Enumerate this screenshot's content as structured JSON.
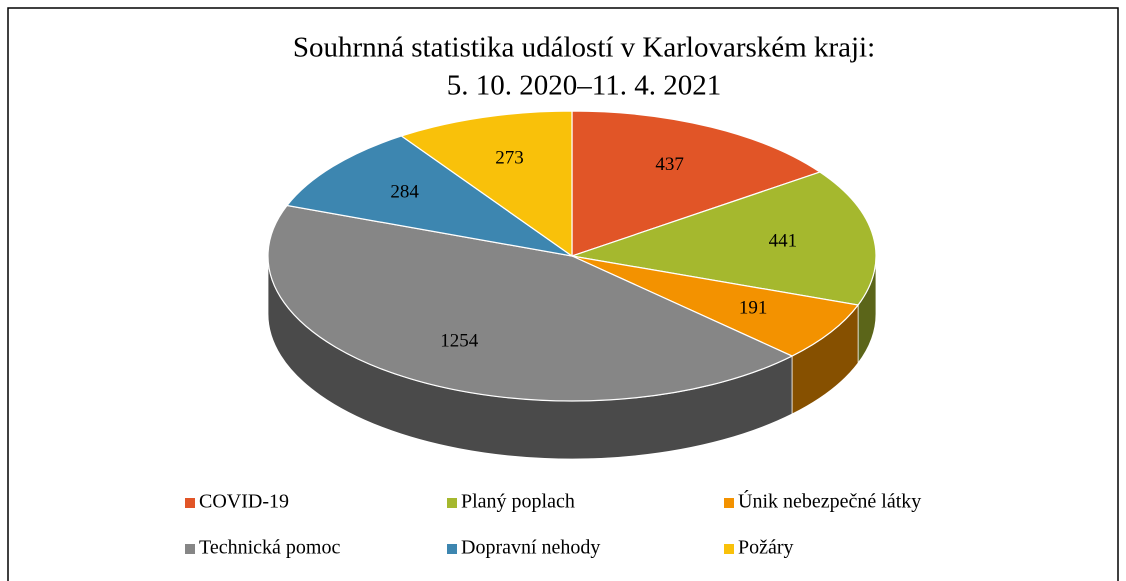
{
  "chart_data": {
    "type": "pie3d",
    "title": "Souhrnná statistika událostí v Karlovarském kraji:",
    "subtitle": "5. 10. 2020–11. 4. 2021",
    "categories": [
      "COVID-19",
      "Planý poplach",
      "Únik nebezpečné látky",
      "Technická pomoc",
      "Dopravní nehody",
      "Požáry"
    ],
    "values": [
      437,
      441,
      191,
      1254,
      284,
      273
    ],
    "colors": [
      "#e15527",
      "#a5b82e",
      "#f39200",
      "#868686",
      "#3d86b0",
      "#f9c10a"
    ],
    "legend": "bottom"
  }
}
